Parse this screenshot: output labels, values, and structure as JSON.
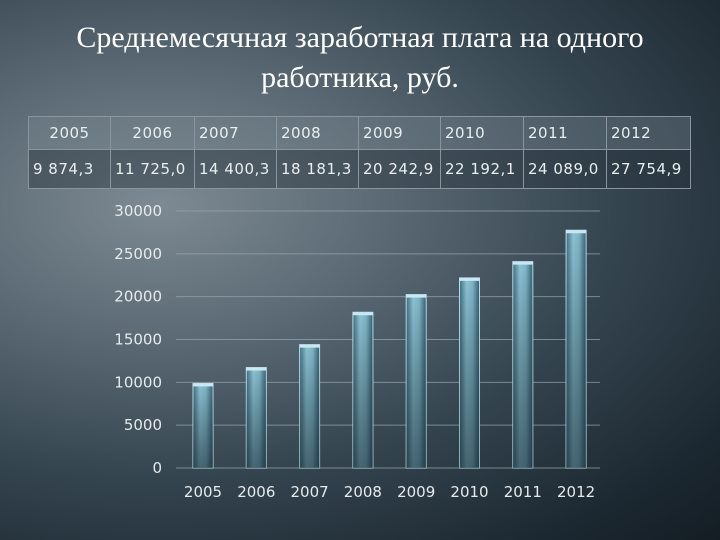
{
  "title": {
    "line1": "Среднемесячная заработная плата на одного",
    "line2": "работника, руб."
  },
  "table": {
    "years": [
      "2005",
      "2006",
      "2007",
      "2008",
      "2009",
      "2010",
      "2011",
      "2012"
    ],
    "values": [
      "9 874,3",
      "11 725,0",
      "14 400,3",
      "18 181,3",
      "20 242,9",
      "22 192,1",
      "24 089,0",
      "27 754,9"
    ]
  },
  "colors": {
    "bar_fill": "#7fb6c8",
    "bar_edge": "#b9dfea",
    "grid": "#9aa7ae",
    "tick_text": "#e6eaec"
  },
  "chart_data": {
    "type": "bar",
    "categories": [
      "2005",
      "2006",
      "2007",
      "2008",
      "2009",
      "2010",
      "2011",
      "2012"
    ],
    "values": [
      9874.3,
      11725.0,
      14400.3,
      18181.3,
      20242.9,
      22192.1,
      24089.0,
      27754.9
    ],
    "ylim": [
      0,
      30000
    ],
    "yticks": [
      0,
      5000,
      10000,
      15000,
      20000,
      25000,
      30000
    ],
    "grid": true,
    "legend": "none"
  }
}
